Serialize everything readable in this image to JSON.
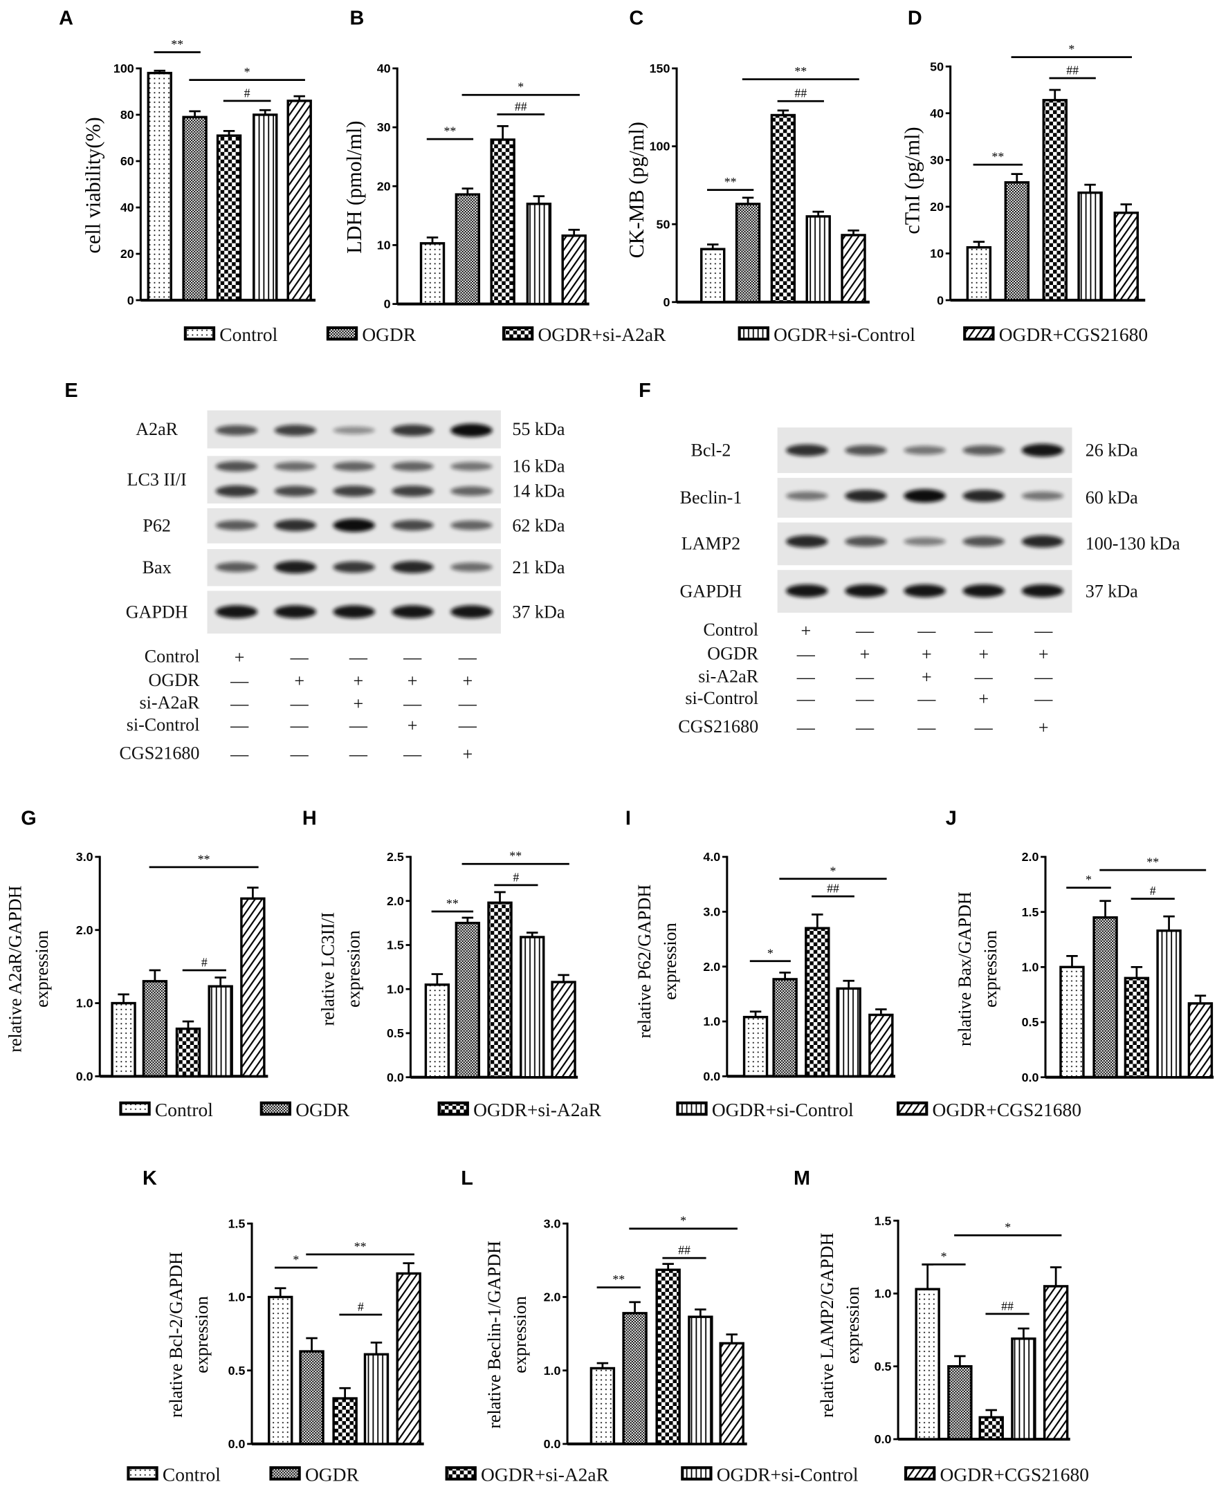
{
  "groups": [
    "Control",
    "OGDR",
    "OGDR+si-A2aR",
    "OGDR+si-Control",
    "OGDR+CGS21680"
  ],
  "patterns": [
    "dots",
    "fine-crosshatch",
    "checker",
    "vertical-lines",
    "diagonal-lines"
  ],
  "colors": {
    "ink": "#000000",
    "blot_bg": "#e6e6e6",
    "band": "#111111"
  },
  "chart_data": [
    {
      "panel": "A",
      "type": "bar",
      "ylabel": "cell viability(%)",
      "ylim": [
        0,
        100
      ],
      "ticks": [
        0,
        20,
        40,
        60,
        80,
        100
      ],
      "tick_decimals": 0,
      "categories": [
        "Control",
        "OGDR",
        "OGDR+si-A2aR",
        "OGDR+si-Control",
        "OGDR+CGS21680"
      ],
      "values": [
        98,
        79,
        71,
        80,
        86
      ],
      "errors": [
        1,
        2.5,
        2,
        2,
        2
      ],
      "annotations": [
        {
          "from": 0,
          "to": 1,
          "y": 107,
          "label": "**"
        },
        {
          "from": 1,
          "to": 4,
          "y": 95,
          "label": "*"
        },
        {
          "from": 2,
          "to": 3,
          "y": 86,
          "label": "#"
        }
      ]
    },
    {
      "panel": "B",
      "type": "bar",
      "ylabel": "LDH (pmol/ml)",
      "ylim": [
        0,
        40
      ],
      "ticks": [
        0,
        10,
        20,
        30,
        40
      ],
      "tick_decimals": 0,
      "categories": [
        "Control",
        "OGDR",
        "OGDR+si-A2aR",
        "OGDR+si-Control",
        "OGDR+CGS21680"
      ],
      "values": [
        10.3,
        18.6,
        27.9,
        17.0,
        11.6
      ],
      "errors": [
        1.0,
        1.0,
        2.3,
        1.3,
        1.0
      ],
      "annotations": [
        {
          "from": 0,
          "to": 1,
          "y": 28,
          "label": "**"
        },
        {
          "from": 2,
          "to": 3,
          "y": 32.2,
          "label": "##"
        },
        {
          "from": 1,
          "to": 4,
          "y": 35.5,
          "label": "*"
        }
      ]
    },
    {
      "panel": "C",
      "type": "bar",
      "ylabel": "CK-MB (pg/ml)",
      "ylim": [
        0,
        150
      ],
      "ticks": [
        0,
        50,
        100,
        150
      ],
      "tick_decimals": 0,
      "categories": [
        "Control",
        "OGDR",
        "OGDR+si-A2aR",
        "OGDR+si-Control",
        "OGDR+CGS21680"
      ],
      "values": [
        34,
        63,
        120,
        55,
        43
      ],
      "errors": [
        3,
        4,
        3,
        3,
        3
      ],
      "annotations": [
        {
          "from": 0,
          "to": 1,
          "y": 72,
          "label": "**"
        },
        {
          "from": 2,
          "to": 3,
          "y": 129,
          "label": "##"
        },
        {
          "from": 1,
          "to": 4,
          "y": 143,
          "label": "**"
        }
      ]
    },
    {
      "panel": "D",
      "type": "bar",
      "ylabel": "cTnI (pg/ml)",
      "ylim": [
        0,
        50
      ],
      "ticks": [
        0,
        10,
        20,
        30,
        40,
        50
      ],
      "tick_decimals": 0,
      "categories": [
        "Control",
        "OGDR",
        "OGDR+si-A2aR",
        "OGDR+si-Control",
        "OGDR+CGS21680"
      ],
      "values": [
        11.3,
        25.2,
        42.8,
        23.0,
        18.7
      ],
      "errors": [
        1.2,
        1.8,
        2.2,
        1.7,
        1.8
      ],
      "annotations": [
        {
          "from": 0,
          "to": 1,
          "y": 29,
          "label": "**"
        },
        {
          "from": 2,
          "to": 3,
          "y": 47.5,
          "label": "##"
        },
        {
          "from": 1,
          "to": 4,
          "y": 52,
          "label": "*"
        }
      ]
    },
    {
      "panel": "G",
      "type": "bar",
      "ylabel": [
        "relative A2aR/GAPDH",
        "expression"
      ],
      "ylim": [
        0,
        3
      ],
      "ticks": [
        0,
        1,
        2,
        3
      ],
      "tick_decimals": 1,
      "categories": [
        "Control",
        "OGDR",
        "OGDR+si-A2aR",
        "OGDR+si-Control",
        "OGDR+CGS21680"
      ],
      "values": [
        1.0,
        1.3,
        0.65,
        1.23,
        2.43
      ],
      "errors": [
        0.12,
        0.15,
        0.1,
        0.12,
        0.15
      ],
      "annotations": [
        {
          "from": 1,
          "to": 4,
          "y": 2.86,
          "label": "**"
        },
        {
          "from": 2,
          "to": 3,
          "y": 1.45,
          "label": "#"
        }
      ]
    },
    {
      "panel": "H",
      "type": "bar",
      "ylabel": [
        "relative LC3II/I",
        "expression"
      ],
      "ylim": [
        0,
        2.5
      ],
      "ticks": [
        0,
        0.5,
        1,
        1.5,
        2,
        2.5
      ],
      "tick_decimals": 1,
      "categories": [
        "Control",
        "OGDR",
        "OGDR+si-A2aR",
        "OGDR+si-Control",
        "OGDR+CGS21680"
      ],
      "values": [
        1.05,
        1.75,
        1.98,
        1.59,
        1.08
      ],
      "errors": [
        0.12,
        0.06,
        0.12,
        0.05,
        0.08
      ],
      "annotations": [
        {
          "from": 0,
          "to": 1,
          "y": 1.88,
          "label": "**"
        },
        {
          "from": 2,
          "to": 3,
          "y": 2.18,
          "label": "#"
        },
        {
          "from": 1,
          "to": 4,
          "y": 2.42,
          "label": "**"
        }
      ]
    },
    {
      "panel": "I",
      "type": "bar",
      "ylabel": [
        "relative P62/GAPDH",
        "expression"
      ],
      "ylim": [
        0,
        4
      ],
      "ticks": [
        0,
        1,
        2,
        3,
        4
      ],
      "tick_decimals": 1,
      "categories": [
        "Control",
        "OGDR",
        "OGDR+si-A2aR",
        "OGDR+si-Control",
        "OGDR+CGS21680"
      ],
      "values": [
        1.08,
        1.77,
        2.7,
        1.6,
        1.12
      ],
      "errors": [
        0.1,
        0.12,
        0.25,
        0.14,
        0.1
      ],
      "annotations": [
        {
          "from": 0,
          "to": 1,
          "y": 2.1,
          "label": "*"
        },
        {
          "from": 2,
          "to": 3,
          "y": 3.28,
          "label": "##"
        },
        {
          "from": 1,
          "to": 4,
          "y": 3.6,
          "label": "*"
        }
      ]
    },
    {
      "panel": "J",
      "type": "bar",
      "ylabel": [
        "relative Bax/GAPDH",
        "expression"
      ],
      "ylim": [
        0,
        2
      ],
      "ticks": [
        0,
        0.5,
        1,
        1.5,
        2
      ],
      "tick_decimals": 1,
      "categories": [
        "Control",
        "OGDR",
        "OGDR+si-A2aR",
        "OGDR+si-Control",
        "OGDR+CGS21680"
      ],
      "values": [
        1.0,
        1.45,
        0.9,
        1.33,
        0.67
      ],
      "errors": [
        0.1,
        0.15,
        0.1,
        0.13,
        0.07
      ],
      "annotations": [
        {
          "from": 0,
          "to": 1,
          "y": 1.72,
          "label": "*"
        },
        {
          "from": 2,
          "to": 3,
          "y": 1.62,
          "label": "#"
        },
        {
          "from": 1,
          "to": 4,
          "y": 1.88,
          "label": "**"
        }
      ]
    },
    {
      "panel": "K",
      "type": "bar",
      "ylabel": [
        "relative Bcl-2/GAPDH",
        "expression"
      ],
      "ylim": [
        0,
        1.5
      ],
      "ticks": [
        0,
        0.5,
        1,
        1.5
      ],
      "tick_decimals": 1,
      "categories": [
        "Control",
        "OGDR",
        "OGDR+si-A2aR",
        "OGDR+si-Control",
        "OGDR+CGS21680"
      ],
      "values": [
        1.0,
        0.63,
        0.31,
        0.61,
        1.16
      ],
      "errors": [
        0.06,
        0.09,
        0.07,
        0.08,
        0.07
      ],
      "annotations": [
        {
          "from": 0,
          "to": 1,
          "y": 1.2,
          "label": "*"
        },
        {
          "from": 2,
          "to": 3,
          "y": 0.88,
          "label": "#"
        },
        {
          "from": 1,
          "to": 4,
          "y": 1.29,
          "label": "**"
        }
      ]
    },
    {
      "panel": "L",
      "type": "bar",
      "ylabel": [
        "relative Beclin-1/GAPDH",
        "expression"
      ],
      "ylim": [
        0,
        3
      ],
      "ticks": [
        0,
        1,
        2,
        3
      ],
      "tick_decimals": 1,
      "categories": [
        "Control",
        "OGDR",
        "OGDR+si-A2aR",
        "OGDR+si-Control",
        "OGDR+CGS21680"
      ],
      "values": [
        1.03,
        1.78,
        2.37,
        1.73,
        1.37
      ],
      "errors": [
        0.07,
        0.15,
        0.08,
        0.1,
        0.12
      ],
      "annotations": [
        {
          "from": 0,
          "to": 1,
          "y": 2.13,
          "label": "**"
        },
        {
          "from": 2,
          "to": 3,
          "y": 2.53,
          "label": "##"
        },
        {
          "from": 1,
          "to": 4,
          "y": 2.93,
          "label": "*"
        }
      ]
    },
    {
      "panel": "M",
      "type": "bar",
      "ylabel": [
        "relative LAMP2/GAPDH",
        "expression"
      ],
      "ylim": [
        0,
        1.5
      ],
      "ticks": [
        0,
        0.5,
        1,
        1.5
      ],
      "tick_decimals": 1,
      "categories": [
        "Control",
        "OGDR",
        "OGDR+si-A2aR",
        "OGDR+si-Control",
        "OGDR+CGS21680"
      ],
      "values": [
        1.03,
        0.5,
        0.15,
        0.69,
        1.05
      ],
      "errors": [
        0.17,
        0.07,
        0.05,
        0.07,
        0.13
      ],
      "annotations": [
        {
          "from": 0,
          "to": 1,
          "y": 1.2,
          "label": "*"
        },
        {
          "from": 2,
          "to": 3,
          "y": 0.86,
          "label": "##"
        },
        {
          "from": 1,
          "to": 4,
          "y": 1.4,
          "label": "*"
        }
      ]
    }
  ],
  "blots": [
    {
      "panel": "E",
      "rows": [
        {
          "label": "A2aR",
          "kda": [
            "55 kDa"
          ],
          "bands": [
            [
              0.6,
              0.7,
              0.25,
              0.75,
              1.0
            ]
          ]
        },
        {
          "label": "LC3 II/I",
          "kda": [
            "16 kDa",
            "14 kDa"
          ],
          "bands": [
            [
              0.6,
              0.45,
              0.5,
              0.5,
              0.4
            ],
            [
              0.75,
              0.65,
              0.7,
              0.7,
              0.5
            ]
          ]
        },
        {
          "label": "P62",
          "kda": [
            "62 kDa"
          ],
          "bands": [
            [
              0.55,
              0.8,
              1.0,
              0.65,
              0.5
            ]
          ]
        },
        {
          "label": "Bax",
          "kda": [
            "21 kDa"
          ],
          "bands": [
            [
              0.55,
              0.9,
              0.75,
              0.85,
              0.45
            ]
          ]
        },
        {
          "label": "GAPDH",
          "kda": [
            "37 kDa"
          ],
          "bands": [
            [
              0.95,
              0.95,
              0.95,
              0.95,
              0.95
            ]
          ]
        }
      ],
      "treatments": [
        {
          "label": "Control",
          "signs": [
            "+",
            "—",
            "—",
            "—",
            "—"
          ]
        },
        {
          "label": "OGDR",
          "signs": [
            "—",
            "+",
            "+",
            "+",
            "+"
          ]
        },
        {
          "label": "si-A2aR",
          "signs": [
            "—",
            "—",
            "+",
            "—",
            "—"
          ]
        },
        {
          "label": "si-Control",
          "signs": [
            "—",
            "—",
            "—",
            "+",
            "—"
          ]
        },
        {
          "label": "CGS21680",
          "signs": [
            "—",
            "—",
            "—",
            "—",
            "+"
          ]
        }
      ]
    },
    {
      "panel": "F",
      "rows": [
        {
          "label": "Bcl-2",
          "kda": [
            "26 kDa"
          ],
          "bands": [
            [
              0.8,
              0.6,
              0.4,
              0.55,
              0.95
            ]
          ]
        },
        {
          "label": "Beclin-1",
          "kda": [
            "60 kDa"
          ],
          "bands": [
            [
              0.4,
              0.85,
              1.0,
              0.85,
              0.4
            ]
          ]
        },
        {
          "label": "LAMP2",
          "kda": [
            "100-130 kDa"
          ],
          "bands": [
            [
              0.85,
              0.6,
              0.35,
              0.6,
              0.85
            ]
          ]
        },
        {
          "label": "GAPDH",
          "kda": [
            "37 kDa"
          ],
          "bands": [
            [
              0.95,
              0.95,
              0.95,
              0.95,
              0.95
            ]
          ]
        }
      ],
      "treatments": [
        {
          "label": "Control",
          "signs": [
            "+",
            "—",
            "—",
            "—",
            "—"
          ]
        },
        {
          "label": "OGDR",
          "signs": [
            "—",
            "+",
            "+",
            "+",
            "+"
          ]
        },
        {
          "label": "si-A2aR",
          "signs": [
            "—",
            "—",
            "+",
            "—",
            "—"
          ]
        },
        {
          "label": "si-Control",
          "signs": [
            "—",
            "—",
            "—",
            "+",
            "—"
          ]
        },
        {
          "label": "CGS21680",
          "signs": [
            "—",
            "—",
            "—",
            "—",
            "+"
          ]
        }
      ]
    }
  ]
}
